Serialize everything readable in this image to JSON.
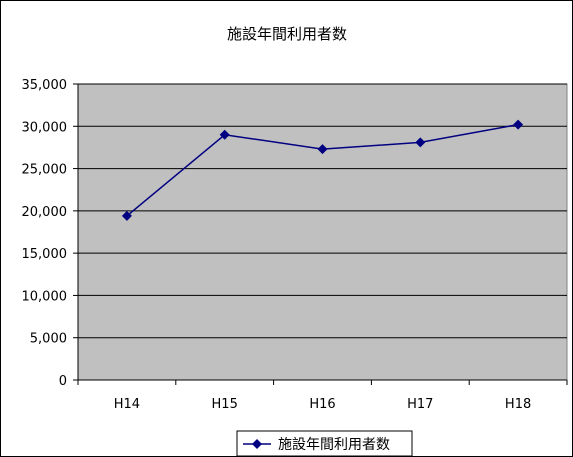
{
  "chart_data": {
    "type": "line",
    "title": "施設年間利用者数",
    "categories": [
      "H14",
      "H15",
      "H16",
      "H17",
      "H18"
    ],
    "series": [
      {
        "name": "施設年間利用者数",
        "values": [
          19400,
          29000,
          27300,
          28100,
          30200
        ]
      }
    ],
    "y_ticks": [
      "0",
      "5,000",
      "10,000",
      "15,000",
      "20,000",
      "25,000",
      "30,000",
      "35,000"
    ],
    "ylim": [
      0,
      35000
    ],
    "grid": true,
    "legend_position": "bottom",
    "colors": {
      "plot_background": "#c0c0c0",
      "series": "#000080",
      "gridline": "#000000"
    }
  }
}
